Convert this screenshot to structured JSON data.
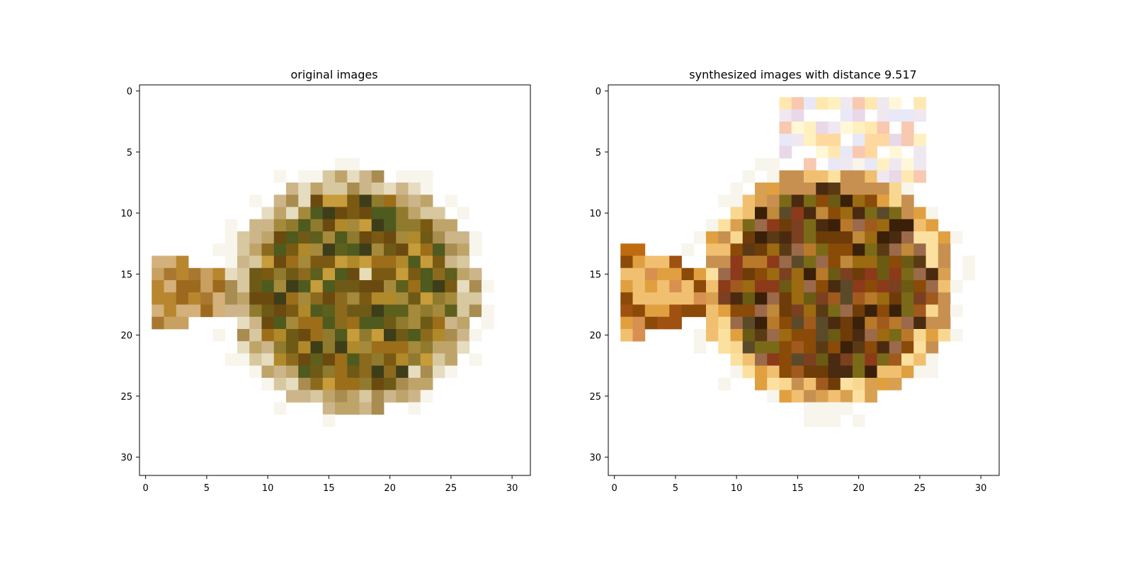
{
  "chart_data": [
    {
      "type": "heatmap",
      "title": "original images",
      "xlim": [
        -0.5,
        31.5
      ],
      "ylim": [
        31.5,
        -0.5
      ],
      "x_ticks": [
        0,
        5,
        10,
        15,
        20,
        25,
        30
      ],
      "y_ticks": [
        0,
        5,
        10,
        15,
        20,
        25,
        30
      ],
      "grid": false,
      "background": "#ffffff",
      "shape": "ellipse",
      "center": [
        17.0,
        16.5
      ],
      "radius": [
        10.2,
        9.8
      ],
      "tail": {
        "x_start": 0.5,
        "x_end": 6.5,
        "y_top": 13.0,
        "y_bottom": 20.0
      },
      "palette": [
        "#8b6a1e",
        "#7a5a12",
        "#6e5a16",
        "#5d5f1c",
        "#4f5a1e",
        "#9c6e1a",
        "#b08a2a",
        "#c79c3a",
        "#6b4a10",
        "#8f7a2e",
        "#a58a3c",
        "#3d3d1a"
      ],
      "edge_palette": [
        "#d8c8a0",
        "#cdb58a",
        "#e6dcc0",
        "#bfa46a",
        "#a88c50"
      ],
      "tail_palette": [
        "#c8a060",
        "#b8862e",
        "#d4b07a",
        "#9c6a1e",
        "#a87830"
      ],
      "highlight": {
        "col": 18,
        "row": 15,
        "color": "#e6dcb8"
      }
    },
    {
      "type": "heatmap",
      "title": "synthesized images with distance 9.517",
      "xlim": [
        -0.5,
        31.5
      ],
      "ylim": [
        31.5,
        -0.5
      ],
      "x_ticks": [
        0,
        5,
        10,
        15,
        20,
        25,
        30
      ],
      "y_ticks": [
        0,
        5,
        10,
        15,
        20,
        25,
        30
      ],
      "grid": false,
      "background": "#ffffff",
      "shape": "ellipse",
      "center": [
        17.5,
        16.0
      ],
      "radius": [
        10.5,
        9.8
      ],
      "tail": {
        "x_start": 0.5,
        "x_end": 7.5,
        "y_top": 12.0,
        "y_bottom": 21.0
      },
      "top_fringe": {
        "x_start": 14,
        "x_end": 25,
        "y_start": 1,
        "y_end": 7
      },
      "palette": [
        "#8a4a08",
        "#9c6a10",
        "#6e3c08",
        "#5a3a14",
        "#7a6a18",
        "#a05a1e",
        "#b87a2a",
        "#4a2a10",
        "#6a5a14",
        "#8c3a1a",
        "#9a6a4a",
        "#c08a3a",
        "#5a4a2a",
        "#7a4020",
        "#3a2008"
      ],
      "edge_palette": [
        "#f0c070",
        "#e0a040",
        "#f8d890",
        "#d8a050",
        "#fce0a0",
        "#c89050"
      ],
      "fringe_palette": [
        "#fff8d8",
        "#ffe8b0",
        "#f0e8f0",
        "#e8e8f8",
        "#ffd8a0",
        "#f8c8b0",
        "#fff0c0",
        "#e8d8e8"
      ],
      "tail_palette": [
        "#f0c070",
        "#c06a10",
        "#a05010",
        "#e0a040",
        "#8c4a08",
        "#d89050"
      ]
    }
  ]
}
